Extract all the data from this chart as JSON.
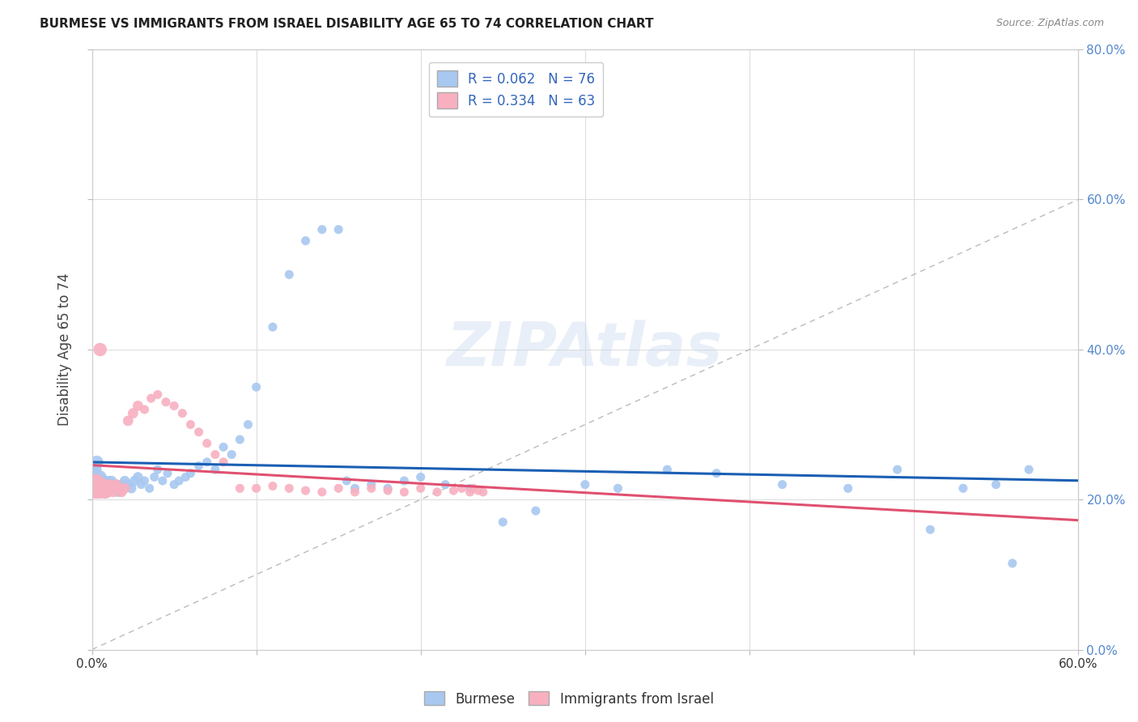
{
  "title": "BURMESE VS IMMIGRANTS FROM ISRAEL DISABILITY AGE 65 TO 74 CORRELATION CHART",
  "source": "Source: ZipAtlas.com",
  "ylabel": "Disability Age 65 to 74",
  "burmese_color": "#a8c8f0",
  "israel_color": "#f8b0c0",
  "burmese_line_color": "#1a5fb4",
  "israel_line_color": "#e05070",
  "burmese_R": 0.062,
  "burmese_N": 76,
  "israel_R": 0.334,
  "israel_N": 63,
  "xlim": [
    0.0,
    0.6
  ],
  "ylim": [
    0.0,
    0.8
  ],
  "watermark": "ZIPAtlas",
  "background_color": "#ffffff",
  "grid_color": "#dddddd",
  "burmese_x": [
    0.001,
    0.002,
    0.003,
    0.003,
    0.004,
    0.004,
    0.005,
    0.005,
    0.006,
    0.006,
    0.007,
    0.007,
    0.008,
    0.008,
    0.009,
    0.01,
    0.01,
    0.011,
    0.012,
    0.013,
    0.014,
    0.015,
    0.016,
    0.017,
    0.018,
    0.02,
    0.022,
    0.024,
    0.026,
    0.028,
    0.03,
    0.032,
    0.035,
    0.038,
    0.04,
    0.043,
    0.046,
    0.05,
    0.053,
    0.057,
    0.06,
    0.065,
    0.07,
    0.075,
    0.08,
    0.085,
    0.09,
    0.095,
    0.1,
    0.11,
    0.12,
    0.13,
    0.14,
    0.15,
    0.155,
    0.16,
    0.17,
    0.18,
    0.19,
    0.2,
    0.215,
    0.23,
    0.25,
    0.27,
    0.3,
    0.32,
    0.35,
    0.38,
    0.42,
    0.46,
    0.49,
    0.51,
    0.53,
    0.55,
    0.56,
    0.57
  ],
  "burmese_y": [
    0.235,
    0.24,
    0.22,
    0.25,
    0.225,
    0.215,
    0.22,
    0.23,
    0.218,
    0.225,
    0.215,
    0.222,
    0.218,
    0.21,
    0.22,
    0.215,
    0.225,
    0.212,
    0.225,
    0.218,
    0.215,
    0.22,
    0.21,
    0.215,
    0.22,
    0.225,
    0.22,
    0.215,
    0.225,
    0.23,
    0.22,
    0.225,
    0.215,
    0.23,
    0.24,
    0.225,
    0.235,
    0.22,
    0.225,
    0.23,
    0.235,
    0.245,
    0.25,
    0.24,
    0.27,
    0.26,
    0.28,
    0.3,
    0.35,
    0.43,
    0.5,
    0.545,
    0.56,
    0.56,
    0.225,
    0.215,
    0.22,
    0.215,
    0.225,
    0.23,
    0.22,
    0.215,
    0.17,
    0.185,
    0.22,
    0.215,
    0.24,
    0.235,
    0.22,
    0.215,
    0.24,
    0.16,
    0.215,
    0.22,
    0.115,
    0.24
  ],
  "israel_x": [
    0.001,
    0.001,
    0.002,
    0.002,
    0.003,
    0.003,
    0.003,
    0.004,
    0.004,
    0.005,
    0.005,
    0.006,
    0.006,
    0.007,
    0.007,
    0.008,
    0.008,
    0.009,
    0.009,
    0.01,
    0.01,
    0.011,
    0.012,
    0.013,
    0.014,
    0.015,
    0.016,
    0.017,
    0.018,
    0.02,
    0.022,
    0.025,
    0.028,
    0.032,
    0.036,
    0.04,
    0.045,
    0.05,
    0.055,
    0.06,
    0.065,
    0.07,
    0.075,
    0.08,
    0.09,
    0.1,
    0.11,
    0.12,
    0.13,
    0.14,
    0.15,
    0.16,
    0.17,
    0.18,
    0.19,
    0.2,
    0.21,
    0.22,
    0.225,
    0.23,
    0.232,
    0.235,
    0.238
  ],
  "israel_y": [
    0.215,
    0.225,
    0.21,
    0.22,
    0.215,
    0.225,
    0.21,
    0.22,
    0.215,
    0.4,
    0.21,
    0.215,
    0.22,
    0.212,
    0.215,
    0.21,
    0.218,
    0.212,
    0.215,
    0.21,
    0.215,
    0.22,
    0.215,
    0.21,
    0.215,
    0.22,
    0.215,
    0.212,
    0.21,
    0.215,
    0.305,
    0.315,
    0.325,
    0.32,
    0.335,
    0.34,
    0.33,
    0.325,
    0.315,
    0.3,
    0.29,
    0.275,
    0.26,
    0.25,
    0.215,
    0.215,
    0.218,
    0.215,
    0.212,
    0.21,
    0.215,
    0.21,
    0.215,
    0.212,
    0.21,
    0.215,
    0.21,
    0.212,
    0.215,
    0.21,
    0.215,
    0.212,
    0.21
  ]
}
